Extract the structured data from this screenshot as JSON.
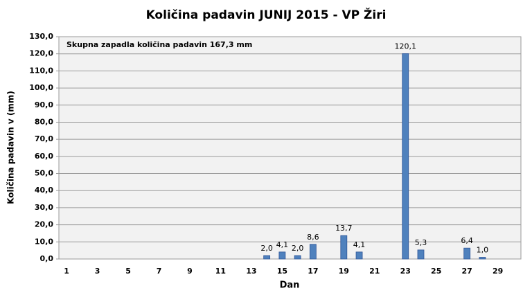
{
  "chart_data": {
    "type": "bar",
    "title": "Količina padavin  JUNIJ 2015 - VP Žiri",
    "annotation": "Skupna zapadla količina padavin  167,3 mm",
    "xlabel": "Dan",
    "ylabel": "Količina padavin v  (mm)",
    "categories": [
      "1",
      null,
      "3",
      null,
      "5",
      null,
      "7",
      null,
      "9",
      null,
      "11",
      null,
      "13",
      null,
      "15",
      null,
      "17",
      null,
      "19",
      null,
      "21",
      null,
      "23",
      null,
      "25",
      null,
      "27",
      null,
      "29",
      null
    ],
    "values": [
      null,
      null,
      null,
      null,
      null,
      null,
      null,
      null,
      null,
      null,
      null,
      null,
      null,
      2.0,
      4.1,
      2.0,
      8.6,
      null,
      13.7,
      4.1,
      null,
      null,
      120.1,
      5.3,
      null,
      null,
      6.4,
      1.0,
      null,
      null
    ],
    "value_labels": [
      null,
      null,
      null,
      null,
      null,
      null,
      null,
      null,
      null,
      null,
      null,
      null,
      null,
      "2,0",
      "4,1",
      "2,0",
      "8,6",
      null,
      "13,7",
      "4,1",
      null,
      null,
      "120,1",
      "5,3",
      null,
      null,
      "6,4",
      "1,0",
      null,
      null
    ],
    "color": "#4f81bd",
    "ylim": [
      0,
      130
    ],
    "yticks": [
      {
        "value": 0,
        "label": "0,0"
      },
      {
        "value": 10,
        "label": "10,0"
      },
      {
        "value": 20,
        "label": "20,0"
      },
      {
        "value": 30,
        "label": "30,0"
      },
      {
        "value": 40,
        "label": "40,0"
      },
      {
        "value": 50,
        "label": "50,0"
      },
      {
        "value": 60,
        "label": "60,0"
      },
      {
        "value": 70,
        "label": "70,0"
      },
      {
        "value": 80,
        "label": "80,0"
      },
      {
        "value": 90,
        "label": "90,0"
      },
      {
        "value": 100,
        "label": "100,0"
      },
      {
        "value": 110,
        "label": "110,0"
      },
      {
        "value": 120,
        "label": "120,0"
      },
      {
        "value": 130,
        "label": "130,0"
      }
    ],
    "grid": true
  }
}
